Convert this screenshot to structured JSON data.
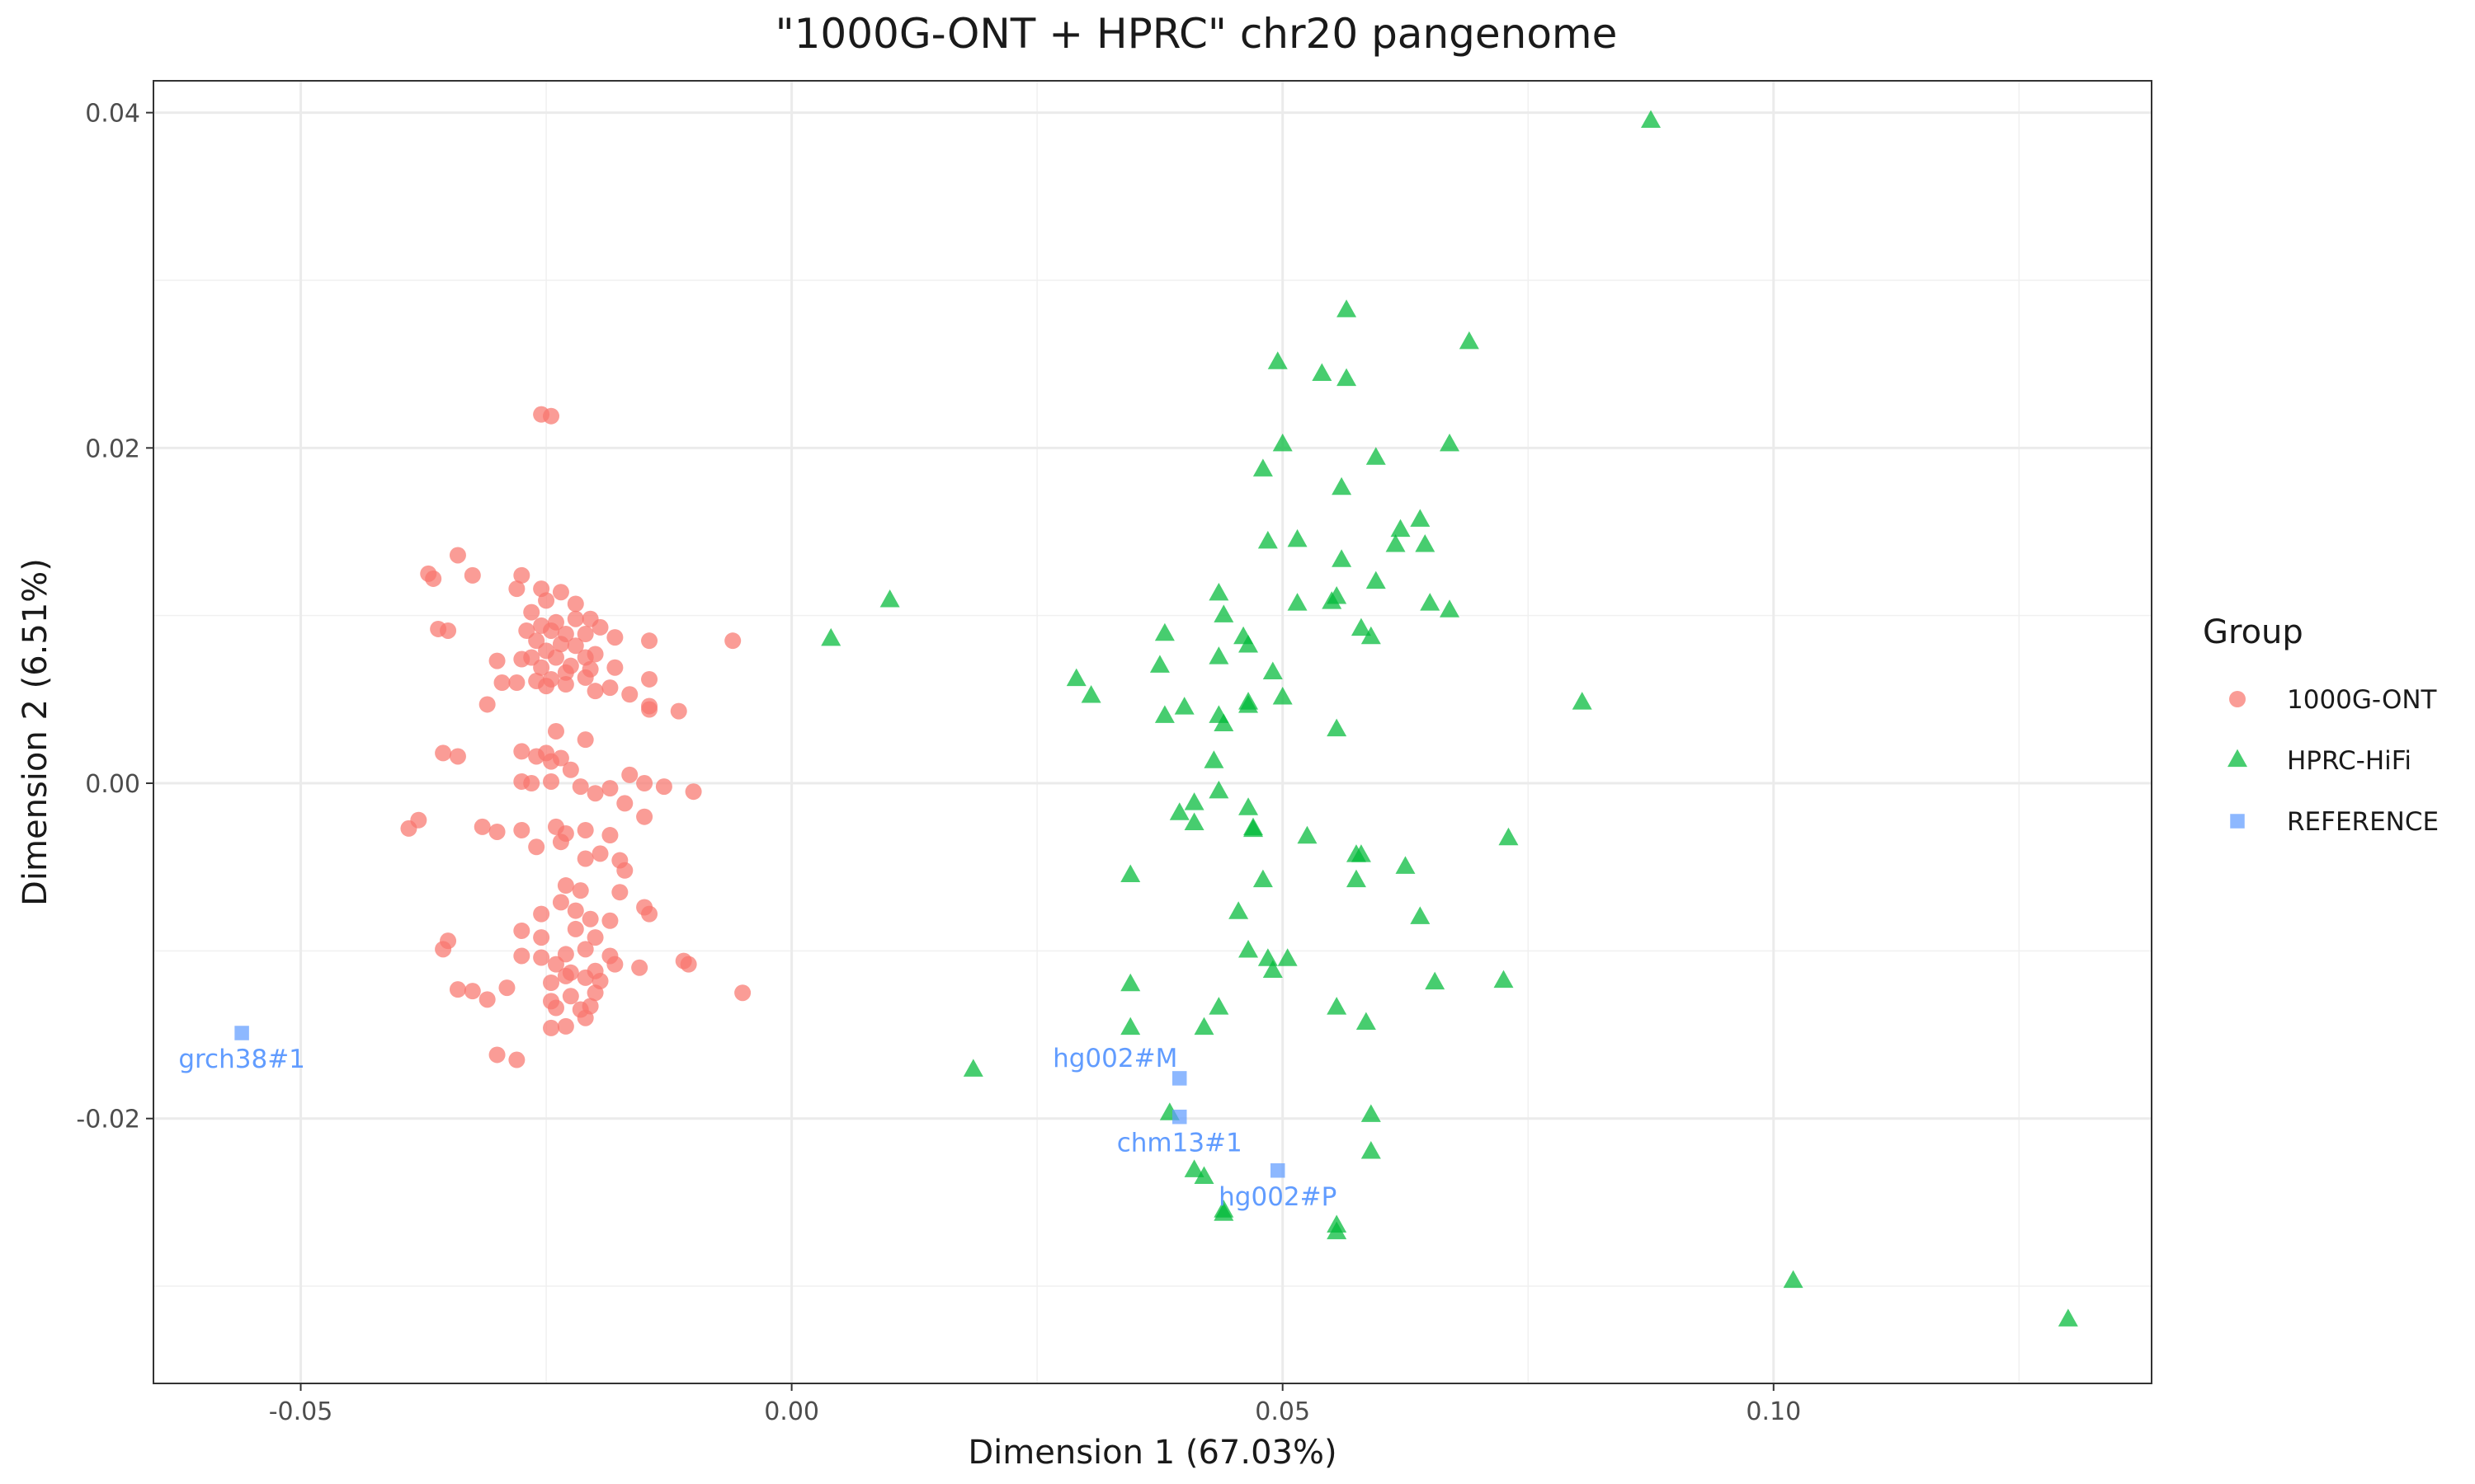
{
  "chart_data": {
    "type": "scatter",
    "title": "\"1000G-ONT + HPRC\" chr20 pangenome",
    "xlabel": "Dimension 1 (67.03%)",
    "ylabel": "Dimension 2 (6.51%)",
    "xlim": [
      -0.065,
      0.1385
    ],
    "ylim": [
      -0.0358,
      0.0419
    ],
    "x_ticks": [
      -0.05,
      0.0,
      0.05,
      0.1
    ],
    "x_tick_labels": [
      "-0.05",
      "0.00",
      "0.05",
      "0.10"
    ],
    "y_ticks": [
      -0.02,
      0.0,
      0.02,
      0.04
    ],
    "y_tick_labels": [
      "-0.02",
      "0.00",
      "0.02",
      "0.04"
    ],
    "grid": true,
    "legend_position": "right",
    "legend_title": "Group",
    "series": [
      {
        "name": "1000G-ONT",
        "marker": "circle",
        "color": "#F8766D",
        "points": [
          [
            -0.0255,
            0.022
          ],
          [
            -0.0245,
            0.0219
          ],
          [
            -0.034,
            0.0136
          ],
          [
            -0.037,
            0.0125
          ],
          [
            -0.0365,
            0.0122
          ],
          [
            -0.0325,
            0.0124
          ],
          [
            -0.0275,
            0.0124
          ],
          [
            -0.028,
            0.0116
          ],
          [
            -0.0255,
            0.0116
          ],
          [
            -0.0235,
            0.0114
          ],
          [
            -0.022,
            0.0107
          ],
          [
            -0.025,
            0.0109
          ],
          [
            -0.0265,
            0.0102
          ],
          [
            -0.022,
            0.0098
          ],
          [
            -0.0205,
            0.0098
          ],
          [
            -0.024,
            0.0096
          ],
          [
            -0.0255,
            0.0094
          ],
          [
            -0.027,
            0.0091
          ],
          [
            -0.0245,
            0.0091
          ],
          [
            -0.023,
            0.0089
          ],
          [
            -0.021,
            0.0089
          ],
          [
            -0.0195,
            0.0093
          ],
          [
            -0.018,
            0.0087
          ],
          [
            -0.0145,
            0.0085
          ],
          [
            -0.036,
            0.0092
          ],
          [
            -0.035,
            0.0091
          ],
          [
            -0.006,
            0.0085
          ],
          [
            -0.026,
            0.0085
          ],
          [
            -0.0235,
            0.0083
          ],
          [
            -0.022,
            0.0082
          ],
          [
            -0.025,
            0.0079
          ],
          [
            -0.0265,
            0.0075
          ],
          [
            -0.024,
            0.0075
          ],
          [
            -0.021,
            0.0075
          ],
          [
            -0.02,
            0.0077
          ],
          [
            -0.0275,
            0.0074
          ],
          [
            -0.03,
            0.0073
          ],
          [
            -0.0255,
            0.0069
          ],
          [
            -0.0225,
            0.007
          ],
          [
            -0.0205,
            0.0068
          ],
          [
            -0.018,
            0.0069
          ],
          [
            -0.023,
            0.0066
          ],
          [
            -0.021,
            0.0063
          ],
          [
            -0.0245,
            0.0062
          ],
          [
            -0.026,
            0.0061
          ],
          [
            -0.028,
            0.006
          ],
          [
            -0.0295,
            0.006
          ],
          [
            -0.0145,
            0.0062
          ],
          [
            -0.025,
            0.0058
          ],
          [
            -0.023,
            0.0059
          ],
          [
            -0.02,
            0.0055
          ],
          [
            -0.0185,
            0.0057
          ],
          [
            -0.0165,
            0.0053
          ],
          [
            -0.0145,
            0.0046
          ],
          [
            -0.0145,
            0.0044
          ],
          [
            -0.0115,
            0.0043
          ],
          [
            -0.031,
            0.0047
          ],
          [
            -0.024,
            0.0031
          ],
          [
            -0.021,
            0.0026
          ],
          [
            -0.0275,
            0.0019
          ],
          [
            -0.026,
            0.0016
          ],
          [
            -0.025,
            0.0018
          ],
          [
            -0.0235,
            0.0015
          ],
          [
            -0.0355,
            0.0018
          ],
          [
            -0.034,
            0.0016
          ],
          [
            -0.0245,
            0.0013
          ],
          [
            -0.0225,
            0.0008
          ],
          [
            -0.0165,
            0.0005
          ],
          [
            -0.0275,
            0.0001
          ],
          [
            -0.0265,
            0.0
          ],
          [
            -0.0245,
            0.0001
          ],
          [
            -0.0215,
            -0.0002
          ],
          [
            -0.0185,
            -0.0003
          ],
          [
            -0.015,
            -0.0
          ],
          [
            -0.013,
            -0.0002
          ],
          [
            -0.01,
            -0.0005
          ],
          [
            -0.02,
            -0.0006
          ],
          [
            -0.017,
            -0.0012
          ],
          [
            -0.015,
            -0.002
          ],
          [
            -0.039,
            -0.0027
          ],
          [
            -0.038,
            -0.0022
          ],
          [
            -0.0315,
            -0.0026
          ],
          [
            -0.03,
            -0.0029
          ],
          [
            -0.0275,
            -0.0028
          ],
          [
            -0.024,
            -0.0026
          ],
          [
            -0.023,
            -0.003
          ],
          [
            -0.021,
            -0.0028
          ],
          [
            -0.0185,
            -0.0031
          ],
          [
            -0.026,
            -0.0038
          ],
          [
            -0.0235,
            -0.0035
          ],
          [
            -0.021,
            -0.0045
          ],
          [
            -0.0195,
            -0.0042
          ],
          [
            -0.0175,
            -0.0046
          ],
          [
            -0.017,
            -0.0052
          ],
          [
            -0.023,
            -0.0061
          ],
          [
            -0.0215,
            -0.0064
          ],
          [
            -0.0175,
            -0.0065
          ],
          [
            -0.015,
            -0.0074
          ],
          [
            -0.0145,
            -0.0078
          ],
          [
            -0.0255,
            -0.0078
          ],
          [
            -0.0235,
            -0.0071
          ],
          [
            -0.022,
            -0.0076
          ],
          [
            -0.0205,
            -0.0081
          ],
          [
            -0.0185,
            -0.0082
          ],
          [
            -0.0275,
            -0.0088
          ],
          [
            -0.0255,
            -0.0092
          ],
          [
            -0.022,
            -0.0087
          ],
          [
            -0.02,
            -0.0092
          ],
          [
            -0.035,
            -0.0094
          ],
          [
            -0.0355,
            -0.0099
          ],
          [
            -0.0275,
            -0.0103
          ],
          [
            -0.0255,
            -0.0104
          ],
          [
            -0.023,
            -0.0102
          ],
          [
            -0.021,
            -0.0099
          ],
          [
            -0.0185,
            -0.0103
          ],
          [
            -0.018,
            -0.0108
          ],
          [
            -0.0155,
            -0.011
          ],
          [
            -0.024,
            -0.0108
          ],
          [
            -0.0225,
            -0.0113
          ],
          [
            -0.02,
            -0.0112
          ],
          [
            -0.011,
            -0.0106
          ],
          [
            -0.0105,
            -0.0108
          ],
          [
            -0.034,
            -0.0123
          ],
          [
            -0.0325,
            -0.0124
          ],
          [
            -0.031,
            -0.0129
          ],
          [
            -0.029,
            -0.0122
          ],
          [
            -0.0245,
            -0.0119
          ],
          [
            -0.023,
            -0.0115
          ],
          [
            -0.021,
            -0.0116
          ],
          [
            -0.0195,
            -0.0118
          ],
          [
            -0.005,
            -0.0125
          ],
          [
            -0.0245,
            -0.013
          ],
          [
            -0.024,
            -0.0134
          ],
          [
            -0.0225,
            -0.0127
          ],
          [
            -0.0215,
            -0.0135
          ],
          [
            -0.0205,
            -0.0133
          ],
          [
            -0.02,
            -0.0125
          ],
          [
            -0.0245,
            -0.0146
          ],
          [
            -0.023,
            -0.0145
          ],
          [
            -0.021,
            -0.014
          ],
          [
            -0.03,
            -0.0162
          ],
          [
            -0.028,
            -0.0165
          ]
        ]
      },
      {
        "name": "HPRC-HiFi",
        "marker": "triangle",
        "color": "#00BA38",
        "points": [
          [
            0.0875,
            0.0395
          ],
          [
            0.0565,
            0.0282
          ],
          [
            0.069,
            0.0263
          ],
          [
            0.0495,
            0.0251
          ],
          [
            0.054,
            0.0244
          ],
          [
            0.0565,
            0.0241
          ],
          [
            0.067,
            0.0202
          ],
          [
            0.05,
            0.0202
          ],
          [
            0.0595,
            0.0194
          ],
          [
            0.048,
            0.0187
          ],
          [
            0.056,
            0.0176
          ],
          [
            0.064,
            0.0157
          ],
          [
            0.062,
            0.0151
          ],
          [
            0.0615,
            0.0142
          ],
          [
            0.0645,
            0.0142
          ],
          [
            0.0485,
            0.0144
          ],
          [
            0.0515,
            0.0145
          ],
          [
            0.056,
            0.0133
          ],
          [
            0.0595,
            0.012
          ],
          [
            0.0435,
            0.0113
          ],
          [
            0.0555,
            0.0111
          ],
          [
            0.055,
            0.0108
          ],
          [
            0.0515,
            0.0107
          ],
          [
            0.065,
            0.0107
          ],
          [
            0.067,
            0.0103
          ],
          [
            0.01,
            0.0109
          ],
          [
            0.044,
            0.01
          ],
          [
            0.038,
            0.0089
          ],
          [
            0.058,
            0.0092
          ],
          [
            0.059,
            0.0087
          ],
          [
            0.046,
            0.0087
          ],
          [
            0.0465,
            0.0082
          ],
          [
            0.004,
            0.0086
          ],
          [
            0.0435,
            0.0075
          ],
          [
            0.0375,
            0.007
          ],
          [
            0.049,
            0.0066
          ],
          [
            0.029,
            0.0062
          ],
          [
            0.0305,
            0.0052
          ],
          [
            0.05,
            0.0051
          ],
          [
            0.0465,
            0.0048
          ],
          [
            0.0465,
            0.0046
          ],
          [
            0.04,
            0.0045
          ],
          [
            0.038,
            0.004
          ],
          [
            0.0435,
            0.004
          ],
          [
            0.044,
            0.0035
          ],
          [
            0.0555,
            0.0032
          ],
          [
            0.0805,
            0.0048
          ],
          [
            0.043,
            0.0013
          ],
          [
            0.0435,
            -0.0005
          ],
          [
            0.041,
            -0.0012
          ],
          [
            0.0465,
            -0.0015
          ],
          [
            0.0395,
            -0.0018
          ],
          [
            0.041,
            -0.0024
          ],
          [
            0.047,
            -0.0027
          ],
          [
            0.047,
            -0.0028
          ],
          [
            0.0525,
            -0.0032
          ],
          [
            0.0575,
            -0.0043
          ],
          [
            0.058,
            -0.0043
          ],
          [
            0.0625,
            -0.005
          ],
          [
            0.073,
            -0.0033
          ],
          [
            0.0345,
            -0.0055
          ],
          [
            0.048,
            -0.0058
          ],
          [
            0.0575,
            -0.0058
          ],
          [
            0.0455,
            -0.0077
          ],
          [
            0.064,
            -0.008
          ],
          [
            0.0465,
            -0.01
          ],
          [
            0.0485,
            -0.0105
          ],
          [
            0.0505,
            -0.0105
          ],
          [
            0.049,
            -0.0112
          ],
          [
            0.0655,
            -0.0119
          ],
          [
            0.0725,
            -0.0118
          ],
          [
            0.0345,
            -0.012
          ],
          [
            0.0435,
            -0.0134
          ],
          [
            0.0555,
            -0.0134
          ],
          [
            0.0345,
            -0.0146
          ],
          [
            0.042,
            -0.0146
          ],
          [
            0.0585,
            -0.0143
          ],
          [
            0.0185,
            -0.0171
          ],
          [
            0.0385,
            -0.0197
          ],
          [
            0.059,
            -0.0198
          ],
          [
            0.041,
            -0.0231
          ],
          [
            0.042,
            -0.0235
          ],
          [
            0.059,
            -0.022
          ],
          [
            0.044,
            -0.0255
          ],
          [
            0.044,
            -0.0257
          ],
          [
            0.0555,
            -0.0264
          ],
          [
            0.0555,
            -0.0268
          ],
          [
            0.102,
            -0.0297
          ],
          [
            0.13,
            -0.032
          ]
        ]
      },
      {
        "name": "REFERENCE",
        "marker": "square",
        "color": "#619CFF",
        "points": [
          [
            -0.056,
            -0.0149
          ],
          [
            0.0395,
            -0.0176
          ],
          [
            0.0395,
            -0.0199
          ],
          [
            0.0495,
            -0.0231
          ]
        ]
      }
    ],
    "annotations": [
      {
        "text": "grch38#1",
        "x": -0.056,
        "y": -0.0149,
        "anchor": "below"
      },
      {
        "text": "hg002#M",
        "x": 0.0395,
        "y": -0.0176,
        "anchor": "upper-left"
      },
      {
        "text": "chm13#1",
        "x": 0.0395,
        "y": -0.0199,
        "anchor": "below"
      },
      {
        "text": "hg002#P",
        "x": 0.0495,
        "y": -0.0231,
        "anchor": "below"
      }
    ],
    "annotation_color": "#619CFF"
  }
}
